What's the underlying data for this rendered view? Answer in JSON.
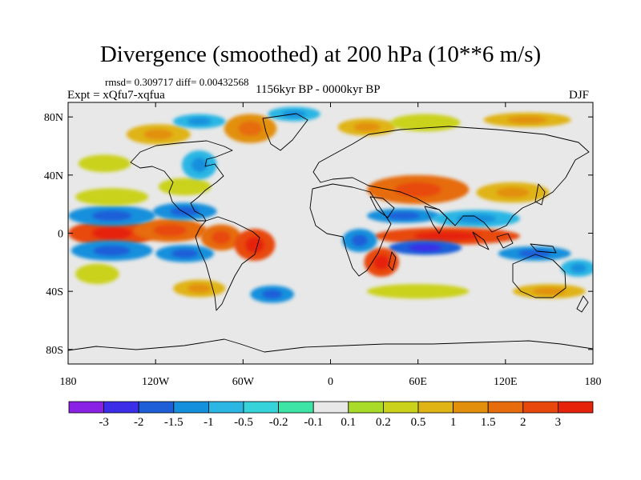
{
  "title": "Divergence (smoothed) at 200 hPa (10**6 m/s)",
  "stats": "rmsd= 0.309717 diff= 0.00432568",
  "experiment": "Expt = xQfu7-xqfua",
  "period": "1156kyr BP - 0000kyr BP",
  "season": "DJF",
  "map": {
    "projection": "cylindrical equidistant",
    "lon_range": [
      -180,
      180
    ],
    "lat_range": [
      -90,
      90
    ],
    "background_color": "#e8e8e8",
    "x_ticks": [
      {
        "lon": -180,
        "label": "180"
      },
      {
        "lon": -120,
        "label": "120W"
      },
      {
        "lon": -60,
        "label": "60W"
      },
      {
        "lon": 0,
        "label": "0"
      },
      {
        "lon": 60,
        "label": "60E"
      },
      {
        "lon": 120,
        "label": "120E"
      },
      {
        "lon": 180,
        "label": "180"
      }
    ],
    "y_ticks": [
      {
        "lat": 80,
        "label": "80N"
      },
      {
        "lat": 40,
        "label": "40N"
      },
      {
        "lat": 0,
        "label": "0"
      },
      {
        "lat": -40,
        "label": "40S"
      },
      {
        "lat": -80,
        "label": "80S"
      }
    ],
    "anomalies": [
      {
        "lon": -150,
        "lat": 0,
        "rx": 30,
        "ry": 9,
        "level": 6
      },
      {
        "lon": -110,
        "lat": 2,
        "rx": 25,
        "ry": 8,
        "level": 5
      },
      {
        "lon": -75,
        "lat": -3,
        "rx": 14,
        "ry": 9,
        "level": 5
      },
      {
        "lon": -52,
        "lat": -8,
        "rx": 14,
        "ry": 11,
        "level": 6
      },
      {
        "lon": -150,
        "lat": 12,
        "rx": 30,
        "ry": 7,
        "level": -4
      },
      {
        "lon": -100,
        "lat": 15,
        "rx": 22,
        "ry": 6,
        "level": -4
      },
      {
        "lon": -150,
        "lat": -12,
        "rx": 28,
        "ry": 7,
        "level": -4
      },
      {
        "lon": -100,
        "lat": -14,
        "rx": 20,
        "ry": 6,
        "level": -4
      },
      {
        "lon": -160,
        "lat": -28,
        "rx": 15,
        "ry": 7,
        "level": 2
      },
      {
        "lon": -150,
        "lat": 25,
        "rx": 25,
        "ry": 6,
        "level": 2
      },
      {
        "lon": -100,
        "lat": 32,
        "rx": 18,
        "ry": 6,
        "level": 2
      },
      {
        "lon": -90,
        "lat": 47,
        "rx": 12,
        "ry": 10,
        "level": -3
      },
      {
        "lon": -155,
        "lat": 48,
        "rx": 18,
        "ry": 6,
        "level": 2
      },
      {
        "lon": -118,
        "lat": 68,
        "rx": 22,
        "ry": 7,
        "level": 3
      },
      {
        "lon": -55,
        "lat": 72,
        "rx": 18,
        "ry": 10,
        "level": 4
      },
      {
        "lon": -90,
        "lat": 77,
        "rx": 18,
        "ry": 5,
        "level": -3
      },
      {
        "lon": -25,
        "lat": 82,
        "rx": 18,
        "ry": 5,
        "level": -3
      },
      {
        "lon": 25,
        "lat": 73,
        "rx": 20,
        "ry": 6,
        "level": 3
      },
      {
        "lon": 65,
        "lat": 76,
        "rx": 24,
        "ry": 6,
        "level": 2
      },
      {
        "lon": 135,
        "lat": 78,
        "rx": 30,
        "ry": 5,
        "level": 3
      },
      {
        "lon": 60,
        "lat": 30,
        "rx": 35,
        "ry": 10,
        "level": 5
      },
      {
        "lon": 125,
        "lat": 28,
        "rx": 25,
        "ry": 7,
        "level": 3
      },
      {
        "lon": 50,
        "lat": 12,
        "rx": 25,
        "ry": 5,
        "level": -4
      },
      {
        "lon": 100,
        "lat": 10,
        "rx": 30,
        "ry": 6,
        "level": -3
      },
      {
        "lon": 80,
        "lat": -2,
        "rx": 50,
        "ry": 6,
        "level": 6
      },
      {
        "lon": 65,
        "lat": -10,
        "rx": 25,
        "ry": 5,
        "level": -5
      },
      {
        "lon": 140,
        "lat": -14,
        "rx": 25,
        "ry": 5,
        "level": -4
      },
      {
        "lon": 35,
        "lat": -20,
        "rx": 12,
        "ry": 10,
        "level": 6
      },
      {
        "lon": 20,
        "lat": -5,
        "rx": 12,
        "ry": 8,
        "level": -4
      },
      {
        "lon": 60,
        "lat": -40,
        "rx": 35,
        "ry": 5,
        "level": 2
      },
      {
        "lon": 150,
        "lat": -40,
        "rx": 25,
        "ry": 5,
        "level": 3
      },
      {
        "lon": -90,
        "lat": -38,
        "rx": 18,
        "ry": 6,
        "level": 3
      },
      {
        "lon": -40,
        "lat": -42,
        "rx": 15,
        "ry": 6,
        "level": -4
      },
      {
        "lon": 170,
        "lat": -24,
        "rx": 12,
        "ry": 6,
        "level": -3
      }
    ]
  },
  "colorbar": {
    "colors": [
      "#8a22e6",
      "#3c2ee8",
      "#1e5fd8",
      "#1490dc",
      "#2cb6e4",
      "#36d4da",
      "#3ee4a6",
      "#e8e8e8",
      "#a8dc28",
      "#cbd21c",
      "#e0b414",
      "#e2900c",
      "#e66c0c",
      "#e8480c",
      "#e6220a"
    ],
    "labels": [
      "-3",
      "-2",
      "-1.5",
      "-1",
      "-0.5",
      "-0.2",
      "-0.1",
      "0.1",
      "0.2",
      "0.5",
      "1",
      "1.5",
      "2",
      "3"
    ]
  }
}
